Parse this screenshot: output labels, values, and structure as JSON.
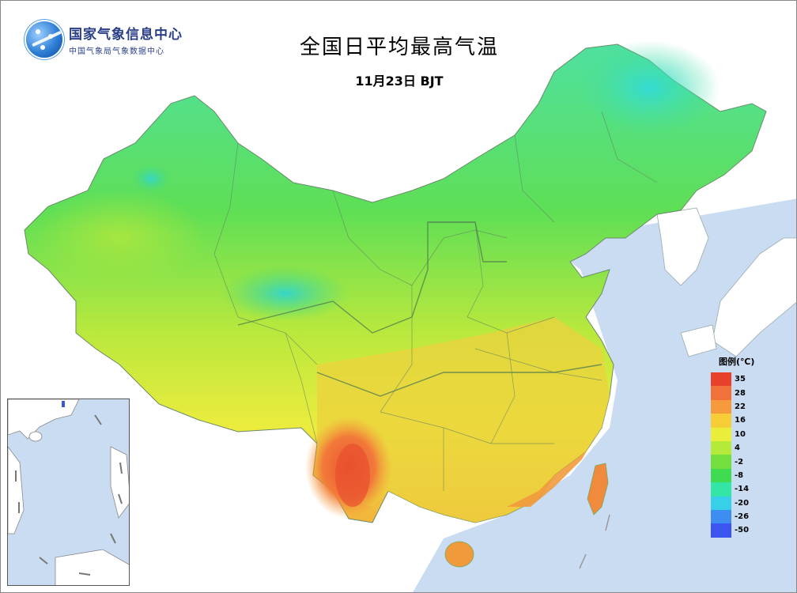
{
  "header": {
    "org_name": "国家气象信息中心",
    "org_sub": "中国气象局气象数据中心",
    "title": "全国日平均最高气温",
    "subtitle": "11月23日 BJT"
  },
  "legend": {
    "title": "图例(℃)",
    "items": [
      {
        "label": "35",
        "color": "#e8402b"
      },
      {
        "label": "28",
        "color": "#f2703a"
      },
      {
        "label": "22",
        "color": "#f79a3d"
      },
      {
        "label": "16",
        "color": "#f6cd37"
      },
      {
        "label": "10",
        "color": "#e9ee3a"
      },
      {
        "label": "4",
        "color": "#b6ea3a"
      },
      {
        "label": "-2",
        "color": "#74e03f"
      },
      {
        "label": "-8",
        "color": "#3fdc52"
      },
      {
        "label": "-14",
        "color": "#33e6a6"
      },
      {
        "label": "-20",
        "color": "#38cfe8"
      },
      {
        "label": "-26",
        "color": "#3d8ef0"
      },
      {
        "label": "-50",
        "color": "#3c54f0"
      }
    ]
  },
  "colors": {
    "ocean": "#c9dcf2",
    "land_other": "#ffffff",
    "cold": "#3fe07e",
    "mild": "#8fe24a",
    "warm": "#ecee3e",
    "hot": "#f08a3c"
  }
}
